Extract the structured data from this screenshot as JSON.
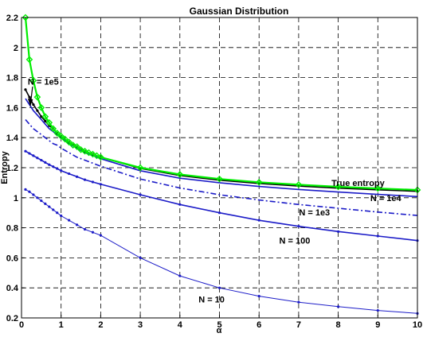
{
  "chart_data": {
    "type": "line",
    "title": "Gaussian Distribution",
    "xlabel": "α",
    "ylabel": "Entropy",
    "xlim": [
      0,
      10
    ],
    "ylim": [
      0.2,
      2.2
    ],
    "x_ticks": [
      0,
      1,
      2,
      3,
      4,
      5,
      6,
      7,
      8,
      9,
      10
    ],
    "y_ticks": [
      0.2,
      0.4,
      0.6,
      0.8,
      1,
      1.2,
      1.4,
      1.6,
      1.8,
      2,
      2.2
    ],
    "grid": true,
    "series": [
      {
        "name": "True entropy",
        "color": "#00ee00",
        "style": "solid",
        "marker": "diamond",
        "x": [
          0.1,
          0.2,
          0.3,
          0.4,
          0.5,
          0.6,
          0.7,
          0.8,
          0.9,
          1.0,
          1.1,
          1.2,
          1.3,
          1.4,
          1.5,
          1.6,
          1.7,
          1.8,
          1.9,
          2,
          3,
          4,
          5,
          6,
          7,
          8,
          9,
          10
        ],
        "values": [
          2.2,
          1.92,
          1.78,
          1.67,
          1.6,
          1.54,
          1.5,
          1.46,
          1.43,
          1.41,
          1.39,
          1.37,
          1.35,
          1.34,
          1.32,
          1.31,
          1.3,
          1.29,
          1.28,
          1.27,
          1.2,
          1.155,
          1.125,
          1.103,
          1.087,
          1.073,
          1.062,
          1.052
        ]
      },
      {
        "name": "N = 1e5",
        "color": "#000000",
        "style": "solid",
        "marker": "point",
        "x": [
          0.1,
          0.2,
          0.3,
          0.4,
          0.5,
          0.6,
          0.7,
          0.8,
          0.9,
          1.0,
          1.2,
          1.4,
          1.6,
          1.8,
          2,
          3,
          4,
          5,
          6,
          7,
          8,
          9,
          10
        ],
        "values": [
          1.72,
          1.67,
          1.62,
          1.58,
          1.54,
          1.51,
          1.48,
          1.46,
          1.43,
          1.41,
          1.37,
          1.34,
          1.31,
          1.29,
          1.27,
          1.195,
          1.148,
          1.117,
          1.095,
          1.078,
          1.064,
          1.053,
          1.043
        ]
      },
      {
        "name": "N = 1e4",
        "color": "#1c1cc8",
        "style": "solid",
        "marker": "none",
        "x": [
          0.1,
          0.2,
          0.3,
          0.4,
          0.5,
          0.6,
          0.7,
          0.8,
          0.9,
          1.0,
          1.2,
          1.4,
          1.6,
          1.8,
          2,
          3,
          4,
          5,
          6,
          7,
          8,
          9,
          10
        ],
        "values": [
          1.66,
          1.62,
          1.58,
          1.55,
          1.52,
          1.49,
          1.46,
          1.44,
          1.42,
          1.4,
          1.36,
          1.33,
          1.3,
          1.28,
          1.26,
          1.18,
          1.13,
          1.1,
          1.075,
          1.055,
          1.038,
          1.022,
          1.008
        ]
      },
      {
        "name": "N = 1e3",
        "color": "#1c1cc8",
        "style": "dashdot",
        "marker": "none",
        "x": [
          0.1,
          0.2,
          0.3,
          0.4,
          0.5,
          0.6,
          0.7,
          0.8,
          0.9,
          1.0,
          1.2,
          1.4,
          1.6,
          1.8,
          2,
          3,
          4,
          5,
          6,
          7,
          8,
          9,
          10
        ],
        "values": [
          1.52,
          1.49,
          1.46,
          1.44,
          1.42,
          1.4,
          1.38,
          1.36,
          1.35,
          1.33,
          1.3,
          1.27,
          1.25,
          1.23,
          1.21,
          1.125,
          1.065,
          1.02,
          0.985,
          0.955,
          0.93,
          0.905,
          0.882
        ]
      },
      {
        "name": "N = 100",
        "color": "#1c1cc8",
        "style": "solid",
        "marker": "point",
        "x": [
          0.1,
          0.2,
          0.3,
          0.4,
          0.5,
          0.6,
          0.7,
          0.8,
          0.9,
          1.0,
          1.2,
          1.4,
          1.6,
          1.8,
          2,
          3,
          4,
          5,
          6,
          7,
          8,
          9,
          10
        ],
        "values": [
          1.31,
          1.295,
          1.28,
          1.265,
          1.25,
          1.235,
          1.22,
          1.207,
          1.194,
          1.18,
          1.16,
          1.14,
          1.12,
          1.105,
          1.09,
          1.02,
          0.955,
          0.9,
          0.85,
          0.81,
          0.775,
          0.745,
          0.715
        ]
      },
      {
        "name": "N = 10",
        "color": "#1c1cc8",
        "style": "solid",
        "marker": "point",
        "x": [
          0.1,
          0.2,
          0.3,
          0.4,
          0.5,
          0.6,
          0.7,
          0.8,
          0.9,
          1.0,
          1.2,
          1.4,
          1.6,
          1.8,
          2,
          3,
          4,
          5,
          6,
          7,
          8,
          9,
          10
        ],
        "values": [
          1.055,
          1.04,
          1.02,
          1.0,
          0.98,
          0.96,
          0.94,
          0.92,
          0.9,
          0.88,
          0.85,
          0.82,
          0.79,
          0.77,
          0.75,
          0.6,
          0.48,
          0.4,
          0.345,
          0.305,
          0.275,
          0.25,
          0.23
        ]
      }
    ],
    "annotations": [
      {
        "text": "N = 1e5",
        "x": 0.55,
        "y": 1.775
      },
      {
        "text": "True entropy",
        "x": 8.5,
        "y": 1.1
      },
      {
        "text": "N = 1e4",
        "x": 9.2,
        "y": 1.0
      },
      {
        "text": "N = 1e3",
        "x": 7.4,
        "y": 0.905
      },
      {
        "text": "N = 100",
        "x": 6.9,
        "y": 0.715
      },
      {
        "text": "N = 10",
        "x": 4.8,
        "y": 0.325
      }
    ]
  }
}
